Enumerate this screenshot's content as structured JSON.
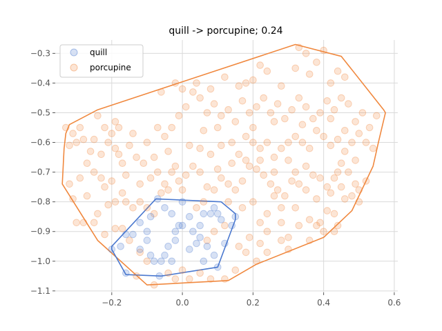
{
  "chart_data": {
    "type": "scatter",
    "title": "quill -> porcupine; 0.24",
    "xlabel": "",
    "ylabel": "",
    "xlim": [
      -0.36,
      0.61
    ],
    "ylim": [
      -1.105,
      -0.255
    ],
    "x_ticks": [
      -0.2,
      0.0,
      0.2,
      0.4,
      0.6
    ],
    "x_tick_labels": [
      "−0.2",
      "0.0",
      "0.2",
      "0.4",
      "0.6"
    ],
    "y_ticks": [
      -0.3,
      -0.4,
      -0.5,
      -0.6,
      -0.7,
      -0.8,
      -0.9,
      -1.0,
      -1.1
    ],
    "y_tick_labels": [
      "−0.3",
      "−0.4",
      "−0.5",
      "−0.6",
      "−0.7",
      "−0.8",
      "−0.9",
      "−1.0",
      "−1.1"
    ],
    "grid": true,
    "legend_position": "top-left",
    "series": [
      {
        "name": "quill",
        "color": "#4a78cf",
        "points": [
          [
            -0.16,
            -1.04
          ],
          [
            -0.2,
            -0.96
          ],
          [
            -0.175,
            -0.95
          ],
          [
            -0.16,
            -0.91
          ],
          [
            -0.14,
            -0.91
          ],
          [
            -0.12,
            -0.87
          ],
          [
            -0.1,
            -0.9
          ],
          [
            -0.1,
            -0.93
          ],
          [
            -0.12,
            -0.96
          ],
          [
            -0.09,
            -0.98
          ],
          [
            -0.08,
            -1.0
          ],
          [
            -0.065,
            -1.05
          ],
          [
            -0.06,
            -1.0
          ],
          [
            -0.05,
            -0.98
          ],
          [
            -0.04,
            -0.95
          ],
          [
            -0.03,
            -1.0
          ],
          [
            -0.02,
            -0.9
          ],
          [
            -0.01,
            -0.88
          ],
          [
            0.0,
            -0.88
          ],
          [
            0.02,
            -0.85
          ],
          [
            0.03,
            -0.9
          ],
          [
            0.04,
            -0.94
          ],
          [
            0.05,
            -0.88
          ],
          [
            0.06,
            -0.84
          ],
          [
            0.07,
            -0.95
          ],
          [
            0.08,
            -0.84
          ],
          [
            0.09,
            -0.82
          ],
          [
            0.1,
            -0.84
          ],
          [
            0.11,
            -0.86
          ],
          [
            0.12,
            -0.94
          ],
          [
            0.15,
            -0.85
          ],
          [
            0.14,
            -0.88
          ],
          [
            0.1,
            -1.02
          ],
          [
            -0.07,
            -0.79
          ],
          [
            -0.05,
            -0.82
          ],
          [
            -0.03,
            -0.84
          ],
          [
            0.0,
            -0.8
          ],
          [
            0.02,
            -0.96
          ],
          [
            0.06,
            -1.0
          ],
          [
            0.09,
            -0.98
          ],
          [
            -0.09,
            -0.85
          ],
          [
            -0.02,
            -0.93
          ],
          [
            0.05,
            -0.92
          ]
        ],
        "hull": [
          [
            -0.075,
            -0.79
          ],
          [
            0.11,
            -0.8
          ],
          [
            0.15,
            -0.84
          ],
          [
            0.15,
            -0.86
          ],
          [
            0.1,
            -1.02
          ],
          [
            -0.06,
            -1.05
          ],
          [
            -0.16,
            -1.045
          ],
          [
            -0.2,
            -0.96
          ],
          [
            -0.2,
            -0.95
          ]
        ]
      },
      {
        "name": "porcupine",
        "color": "#f0883e",
        "points": [
          [
            -0.33,
            -0.55
          ],
          [
            -0.31,
            -0.57
          ],
          [
            -0.29,
            -0.55
          ],
          [
            -0.32,
            -0.61
          ],
          [
            -0.3,
            -0.6
          ],
          [
            -0.28,
            -0.59
          ],
          [
            -0.25,
            -0.59
          ],
          [
            -0.24,
            -0.51
          ],
          [
            -0.22,
            -0.55
          ],
          [
            -0.2,
            -0.57
          ],
          [
            -0.19,
            -0.53
          ],
          [
            -0.18,
            -0.55
          ],
          [
            -0.26,
            -0.63
          ],
          [
            -0.27,
            -0.67
          ],
          [
            -0.23,
            -0.64
          ],
          [
            -0.21,
            -0.6
          ],
          [
            -0.19,
            -0.62
          ],
          [
            -0.18,
            -0.64
          ],
          [
            -0.32,
            -0.74
          ],
          [
            -0.31,
            -0.79
          ],
          [
            -0.29,
            -0.72
          ],
          [
            -0.27,
            -0.78
          ],
          [
            -0.25,
            -0.7
          ],
          [
            -0.23,
            -0.72
          ],
          [
            -0.22,
            -0.75
          ],
          [
            -0.2,
            -0.73
          ],
          [
            -0.19,
            -0.8
          ],
          [
            -0.17,
            -0.77
          ],
          [
            -0.16,
            -0.8
          ],
          [
            -0.14,
            -0.82
          ],
          [
            -0.12,
            -0.8
          ],
          [
            -0.1,
            -0.82
          ],
          [
            -0.08,
            -0.84
          ],
          [
            -0.06,
            -0.77
          ],
          [
            -0.05,
            -0.74
          ],
          [
            -0.07,
            -0.7
          ],
          [
            -0.09,
            -0.72
          ],
          [
            -0.11,
            -0.67
          ],
          [
            -0.13,
            -0.65
          ],
          [
            -0.15,
            -0.61
          ],
          [
            -0.17,
            -0.67
          ],
          [
            -0.21,
            -0.81
          ],
          [
            -0.24,
            -0.84
          ],
          [
            -0.25,
            -0.87
          ],
          [
            -0.28,
            -0.87
          ],
          [
            -0.3,
            -0.87
          ],
          [
            -0.22,
            -0.91
          ],
          [
            -0.19,
            -0.89
          ],
          [
            -0.17,
            -0.89
          ],
          [
            -0.15,
            -0.93
          ],
          [
            -0.12,
            -0.97
          ],
          [
            -0.1,
            -1.0
          ],
          [
            -0.13,
            -1.05
          ],
          [
            -0.08,
            -1.08
          ],
          [
            -0.04,
            -1.04
          ],
          [
            -0.02,
            -1.06
          ],
          [
            0.0,
            -1.03
          ],
          [
            0.02,
            -1.06
          ],
          [
            0.05,
            -1.04
          ],
          [
            0.08,
            -1.06
          ],
          [
            0.12,
            -1.06
          ],
          [
            0.15,
            -1.03
          ],
          [
            0.18,
            -0.97
          ],
          [
            0.21,
            -1.0
          ],
          [
            0.22,
            -0.94
          ],
          [
            0.24,
            -0.9
          ],
          [
            0.28,
            -0.93
          ],
          [
            0.3,
            -0.92
          ],
          [
            0.33,
            -0.88
          ],
          [
            0.36,
            -0.86
          ],
          [
            0.38,
            -0.88
          ],
          [
            0.4,
            -0.9
          ],
          [
            0.41,
            -0.83
          ],
          [
            0.43,
            -0.84
          ],
          [
            0.44,
            -0.88
          ],
          [
            0.46,
            -0.79
          ],
          [
            0.48,
            -0.78
          ],
          [
            0.5,
            -0.8
          ],
          [
            0.52,
            -0.73
          ],
          [
            0.49,
            -0.74
          ],
          [
            0.47,
            -0.7
          ],
          [
            0.45,
            -0.67
          ],
          [
            0.43,
            -0.72
          ],
          [
            0.41,
            -0.75
          ],
          [
            0.39,
            -0.72
          ],
          [
            0.37,
            -0.71
          ],
          [
            0.35,
            -0.76
          ],
          [
            0.33,
            -0.74
          ],
          [
            0.31,
            -0.73
          ],
          [
            0.29,
            -0.78
          ],
          [
            0.27,
            -0.76
          ],
          [
            0.25,
            -0.74
          ],
          [
            0.23,
            -0.71
          ],
          [
            0.21,
            -0.69
          ],
          [
            0.19,
            -0.68
          ],
          [
            0.17,
            -0.73
          ],
          [
            0.15,
            -0.76
          ],
          [
            0.13,
            -0.74
          ],
          [
            0.11,
            -0.72
          ],
          [
            0.09,
            -0.76
          ],
          [
            0.07,
            -0.75
          ],
          [
            0.05,
            -0.7
          ],
          [
            0.03,
            -0.68
          ],
          [
            0.01,
            -0.71
          ],
          [
            -0.01,
            -0.73
          ],
          [
            -0.03,
            -0.7
          ],
          [
            0.02,
            -0.61
          ],
          [
            0.05,
            -0.62
          ],
          [
            0.08,
            -0.64
          ],
          [
            0.11,
            -0.61
          ],
          [
            0.14,
            -0.6
          ],
          [
            0.16,
            -0.64
          ],
          [
            0.18,
            -0.58
          ],
          [
            0.2,
            -0.6
          ],
          [
            0.22,
            -0.62
          ],
          [
            0.24,
            -0.6
          ],
          [
            0.26,
            -0.65
          ],
          [
            0.28,
            -0.62
          ],
          [
            0.3,
            -0.6
          ],
          [
            0.32,
            -0.58
          ],
          [
            0.34,
            -0.6
          ],
          [
            0.36,
            -0.62
          ],
          [
            0.38,
            -0.56
          ],
          [
            0.4,
            -0.58
          ],
          [
            0.42,
            -0.61
          ],
          [
            0.44,
            -0.59
          ],
          [
            0.46,
            -0.56
          ],
          [
            0.48,
            -0.6
          ],
          [
            0.5,
            -0.57
          ],
          [
            0.52,
            -0.6
          ],
          [
            0.54,
            -0.62
          ],
          [
            0.53,
            -0.55
          ],
          [
            0.55,
            -0.51
          ],
          [
            0.51,
            -0.5
          ],
          [
            0.49,
            -0.53
          ],
          [
            0.47,
            -0.47
          ],
          [
            0.45,
            -0.45
          ],
          [
            0.43,
            -0.49
          ],
          [
            0.41,
            -0.46
          ],
          [
            0.39,
            -0.5
          ],
          [
            0.37,
            -0.52
          ],
          [
            0.35,
            -0.48
          ],
          [
            0.33,
            -0.45
          ],
          [
            0.31,
            -0.49
          ],
          [
            0.29,
            -0.52
          ],
          [
            0.27,
            -0.47
          ],
          [
            0.25,
            -0.5
          ],
          [
            0.23,
            -0.45
          ],
          [
            0.21,
            -0.48
          ],
          [
            0.19,
            -0.5
          ],
          [
            0.17,
            -0.46
          ],
          [
            0.15,
            -0.53
          ],
          [
            0.13,
            -0.49
          ],
          [
            0.11,
            -0.51
          ],
          [
            0.09,
            -0.47
          ],
          [
            0.07,
            -0.5
          ],
          [
            0.05,
            -0.45
          ],
          [
            0.03,
            -0.43
          ],
          [
            0.01,
            -0.48
          ],
          [
            -0.01,
            -0.51
          ],
          [
            -0.03,
            -0.55
          ],
          [
            -0.05,
            -0.58
          ],
          [
            -0.07,
            -0.55
          ],
          [
            0.0,
            -0.42
          ],
          [
            0.04,
            -0.4
          ],
          [
            0.08,
            -0.42
          ],
          [
            0.12,
            -0.38
          ],
          [
            0.16,
            -0.41
          ],
          [
            0.2,
            -0.39
          ],
          [
            0.24,
            -0.36
          ],
          [
            0.28,
            -0.41
          ],
          [
            0.32,
            -0.35
          ],
          [
            0.36,
            -0.37
          ],
          [
            0.38,
            -0.33
          ],
          [
            0.42,
            -0.4
          ],
          [
            0.44,
            -0.36
          ],
          [
            0.46,
            -0.38
          ],
          [
            0.4,
            -0.29
          ],
          [
            0.33,
            -0.28
          ],
          [
            0.35,
            -0.3
          ],
          [
            0.22,
            -0.34
          ],
          [
            0.18,
            -0.4
          ],
          [
            -0.02,
            -0.4
          ],
          [
            -0.06,
            -0.43
          ],
          [
            0.06,
            -0.56
          ],
          [
            0.1,
            -0.55
          ],
          [
            0.2,
            -0.55
          ],
          [
            0.26,
            -0.53
          ],
          [
            0.34,
            -0.54
          ],
          [
            0.42,
            -0.52
          ],
          [
            0.3,
            -0.66
          ],
          [
            0.35,
            -0.68
          ],
          [
            0.38,
            -0.79
          ],
          [
            0.32,
            -0.82
          ],
          [
            0.28,
            -0.82
          ],
          [
            0.24,
            -0.84
          ],
          [
            0.2,
            -0.8
          ],
          [
            0.17,
            -0.82
          ],
          [
            0.13,
            -0.8
          ],
          [
            0.06,
            -0.8
          ],
          [
            0.04,
            -0.82
          ],
          [
            0.28,
            -0.87
          ],
          [
            0.22,
            -0.87
          ],
          [
            0.24,
            -0.97
          ],
          [
            0.3,
            -0.96
          ],
          [
            0.36,
            -0.93
          ],
          [
            0.43,
            -0.9
          ],
          [
            0.39,
            -0.87
          ],
          [
            0.26,
            -0.78
          ],
          [
            0.44,
            -0.7
          ],
          [
            0.12,
            -0.88
          ],
          [
            0.16,
            -0.95
          ],
          [
            0.19,
            -0.92
          ],
          [
            0.09,
            -0.9
          ],
          [
            0.07,
            -0.93
          ],
          [
            -0.04,
            -0.63
          ],
          [
            -0.02,
            -0.68
          ],
          [
            -0.08,
            -0.65
          ],
          [
            -0.1,
            -0.6
          ],
          [
            -0.14,
            -0.57
          ],
          [
            -0.16,
            -0.71
          ],
          [
            -0.12,
            -0.74
          ],
          [
            -0.04,
            -0.76
          ],
          [
            0.0,
            -0.76
          ],
          [
            0.1,
            -0.69
          ],
          [
            0.14,
            -0.67
          ],
          [
            0.18,
            -0.66
          ],
          [
            0.22,
            -0.66
          ],
          [
            0.26,
            -0.7
          ],
          [
            0.32,
            -0.7
          ],
          [
            0.46,
            -0.63
          ],
          [
            0.49,
            -0.66
          ],
          [
            0.5,
            -0.76
          ],
          [
            0.45,
            -0.75
          ],
          [
            0.42,
            -0.77
          ]
        ],
        "hull": [
          [
            0.32,
            -0.27
          ],
          [
            0.45,
            -0.31
          ],
          [
            0.57,
            -0.49
          ],
          [
            0.575,
            -0.5
          ],
          [
            0.555,
            -0.6
          ],
          [
            0.54,
            -0.68
          ],
          [
            0.48,
            -0.83
          ],
          [
            0.4,
            -0.92
          ],
          [
            0.21,
            -1.01
          ],
          [
            0.13,
            -1.065
          ],
          [
            -0.1,
            -1.08
          ],
          [
            -0.24,
            -0.93
          ],
          [
            -0.34,
            -0.74
          ],
          [
            -0.335,
            -0.62
          ],
          [
            -0.33,
            -0.57
          ],
          [
            -0.32,
            -0.54
          ],
          [
            -0.24,
            -0.49
          ]
        ]
      }
    ]
  }
}
